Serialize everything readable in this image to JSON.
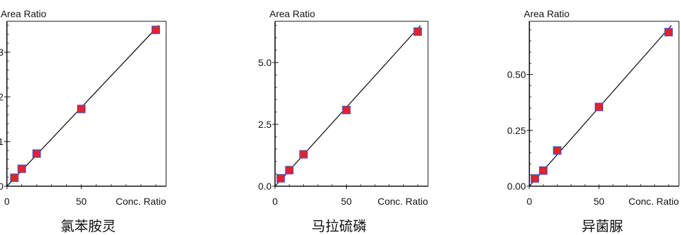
{
  "chart_data": [
    {
      "type": "scatter",
      "title": "氯苯胺灵",
      "ylabel": "Area Ratio",
      "xlabel": "Conc. Ratio",
      "xlim": [
        0,
        100
      ],
      "ylim": [
        0,
        3.6
      ],
      "xticks": [
        "0",
        "50"
      ],
      "yticks": [
        "0",
        "1",
        "2",
        "3"
      ],
      "points": [
        {
          "x": 5,
          "y": 0.19
        },
        {
          "x": 10,
          "y": 0.39
        },
        {
          "x": 20,
          "y": 0.73
        },
        {
          "x": 50,
          "y": 1.73
        },
        {
          "x": 100,
          "y": 3.5
        }
      ],
      "fit_line": [
        {
          "x": 0,
          "y": 0
        },
        {
          "x": 102,
          "y": 3.6
        }
      ]
    },
    {
      "type": "scatter",
      "title": "马拉硫磷",
      "ylabel": "Area Ratio",
      "xlabel": "Conc. Ratio",
      "xlim": [
        0,
        100
      ],
      "ylim": [
        0,
        6.5
      ],
      "xticks": [
        "0",
        "50"
      ],
      "yticks": [
        "0.0",
        "2.5",
        "5.0"
      ],
      "points": [
        {
          "x": 4,
          "y": 0.32
        },
        {
          "x": 10,
          "y": 0.65
        },
        {
          "x": 20,
          "y": 1.29
        },
        {
          "x": 50,
          "y": 3.08
        },
        {
          "x": 100,
          "y": 6.25
        }
      ],
      "fit_line": [
        {
          "x": 0,
          "y": 0
        },
        {
          "x": 102,
          "y": 6.5
        }
      ]
    },
    {
      "type": "scatter",
      "title": "异菌脲",
      "ylabel": "Area Ratio",
      "xlabel": "Conc. Ratio",
      "xlim": [
        0,
        100
      ],
      "ylim": [
        0,
        0.72
      ],
      "xticks": [
        "0",
        "50"
      ],
      "yticks": [
        "0.00",
        "0.25",
        "0.50"
      ],
      "points": [
        {
          "x": 4,
          "y": 0.035
        },
        {
          "x": 10,
          "y": 0.07
        },
        {
          "x": 20,
          "y": 0.16
        },
        {
          "x": 50,
          "y": 0.355
        },
        {
          "x": 100,
          "y": 0.69
        }
      ],
      "fit_line": [
        {
          "x": 0,
          "y": 0
        },
        {
          "x": 102,
          "y": 0.72
        }
      ]
    }
  ],
  "colors": {
    "point_fill": "#e8202a",
    "point_stroke": "#4a52b8",
    "axis": "#111111",
    "line": "#111111"
  }
}
